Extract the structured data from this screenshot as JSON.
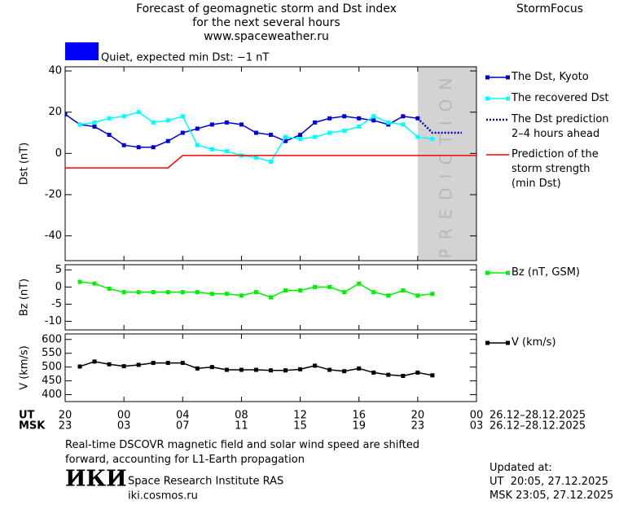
{
  "header": {
    "title": [
      "Forecast of geomagnetic storm and Dst index",
      "for the next several hours",
      "www.spaceweather.ru"
    ],
    "brand": "StormFocus",
    "status": {
      "text": "Quiet, expected min Dst: −1 nT",
      "color": "#0000ff"
    }
  },
  "chart_data": [
    {
      "type": "line",
      "ylabel": "Dst (nT)",
      "xlim": [
        0,
        28
      ],
      "ylim": [
        -52,
        42
      ],
      "xticks": [
        0,
        4,
        8,
        12,
        16,
        20,
        24,
        28
      ],
      "yticks": [
        40,
        20,
        0,
        -20,
        -40
      ],
      "prediction_zone": {
        "label": "PREDICTION",
        "from": 24,
        "to": 28,
        "color": "#d3d3d3"
      },
      "series": [
        {
          "name": "The Dst, Kyoto",
          "color": "#0000cc",
          "marker": "square",
          "dash": false,
          "x": [
            0,
            1,
            2,
            3,
            4,
            5,
            6,
            7,
            8,
            9,
            10,
            11,
            12,
            13,
            14,
            15,
            16,
            17,
            18,
            19,
            20,
            21,
            22,
            23,
            24
          ],
          "values": [
            19,
            14,
            13,
            9,
            4,
            3,
            3,
            6,
            10,
            12,
            14,
            15,
            14,
            10,
            9,
            6,
            9,
            15,
            17,
            18,
            17,
            16,
            14,
            18,
            17
          ]
        },
        {
          "name": "The recovered Dst",
          "color": "#00ffff",
          "marker": "square",
          "dash": false,
          "x": [
            1,
            2,
            3,
            4,
            5,
            6,
            7,
            8,
            9,
            10,
            11,
            12,
            13,
            14,
            15,
            16,
            17,
            18,
            19,
            20,
            21,
            22,
            23,
            24,
            25
          ],
          "values": [
            14,
            15,
            17,
            18,
            20,
            15,
            16,
            18,
            4,
            2,
            1,
            -1,
            -2,
            -4,
            8,
            7,
            8,
            10,
            11,
            13,
            18,
            15,
            14,
            8,
            7
          ]
        },
        {
          "name": "The Dst prediction\n2–4 hours ahead",
          "color": "#0000cc",
          "marker": "none",
          "dash": true,
          "x": [
            24,
            25,
            27
          ],
          "values": [
            17,
            10,
            10
          ]
        },
        {
          "name": "Prediction of the\nstorm strength\n(min Dst)",
          "color": "#ff0000",
          "marker": "none",
          "dash": false,
          "x": [
            0,
            7,
            8,
            28
          ],
          "values": [
            -7,
            -7,
            -1,
            -1
          ]
        }
      ]
    },
    {
      "type": "line",
      "ylabel": "Bz (nT)",
      "xlim": [
        0,
        28
      ],
      "ylim": [
        -12.5,
        6.5
      ],
      "xticks": [
        0,
        4,
        8,
        12,
        16,
        20,
        24,
        28
      ],
      "yticks": [
        5,
        0,
        -5,
        -10
      ],
      "series": [
        {
          "name": "Bz (nT, GSM)",
          "color": "#00ee00",
          "marker": "square",
          "dash": false,
          "x": [
            1,
            2,
            3,
            4,
            5,
            6,
            7,
            8,
            9,
            10,
            11,
            12,
            13,
            14,
            15,
            16,
            17,
            18,
            19,
            20,
            21,
            22,
            23,
            24,
            25
          ],
          "values": [
            1.5,
            1,
            -0.5,
            -1.5,
            -1.5,
            -1.5,
            -1.5,
            -1.5,
            -1.5,
            -2,
            -2,
            -2.5,
            -1.5,
            -3,
            -1,
            -1,
            0,
            0,
            -1.5,
            1,
            -1.5,
            -2.5,
            -1,
            -2.5,
            -2
          ]
        }
      ]
    },
    {
      "type": "line",
      "ylabel": "V (km/s)",
      "xlim": [
        0,
        28
      ],
      "ylim": [
        375,
        620
      ],
      "xticks": [
        {
          "value": 0,
          "label": "20"
        },
        {
          "value": 4,
          "label": "00"
        },
        {
          "value": 8,
          "label": "04"
        },
        {
          "value": 12,
          "label": "08"
        },
        {
          "value": 16,
          "label": "12"
        },
        {
          "value": 20,
          "label": "16"
        },
        {
          "value": 24,
          "label": "20"
        },
        {
          "value": 28,
          "label": "00"
        }
      ],
      "msk_tick_labels": [
        "23",
        "03",
        "07",
        "11",
        "15",
        "19",
        "23",
        "03"
      ],
      "ut_label": "UT",
      "msk_label": "MSK",
      "date_range": "26.12–28.12.2025",
      "yticks": [
        600,
        550,
        500,
        450,
        400
      ],
      "series": [
        {
          "name": "V (km/s)",
          "color": "#000000",
          "marker": "square",
          "dash": false,
          "x": [
            1,
            2,
            3,
            4,
            5,
            6,
            7,
            8,
            9,
            10,
            11,
            12,
            13,
            14,
            15,
            16,
            17,
            18,
            19,
            20,
            21,
            22,
            23,
            24,
            25
          ],
          "values": [
            502,
            520,
            510,
            503,
            508,
            515,
            515,
            515,
            495,
            500,
            490,
            490,
            490,
            488,
            488,
            492,
            505,
            490,
            485,
            495,
            480,
            472,
            468,
            480,
            470
          ]
        }
      ]
    }
  ],
  "footer": {
    "note": "Real-time DSCOVR magnetic field and solar wind speed are shifted\nforward, accounting for L1-Earth propagation",
    "logo": "ИКИ",
    "institute": "Space Research Institute RAS",
    "site": "iki.cosmos.ru",
    "updated_label": "Updated at:",
    "updated_ut": "UT  20:05, 27.12.2025",
    "updated_msk": "MSK 23:05, 27.12.2025"
  }
}
